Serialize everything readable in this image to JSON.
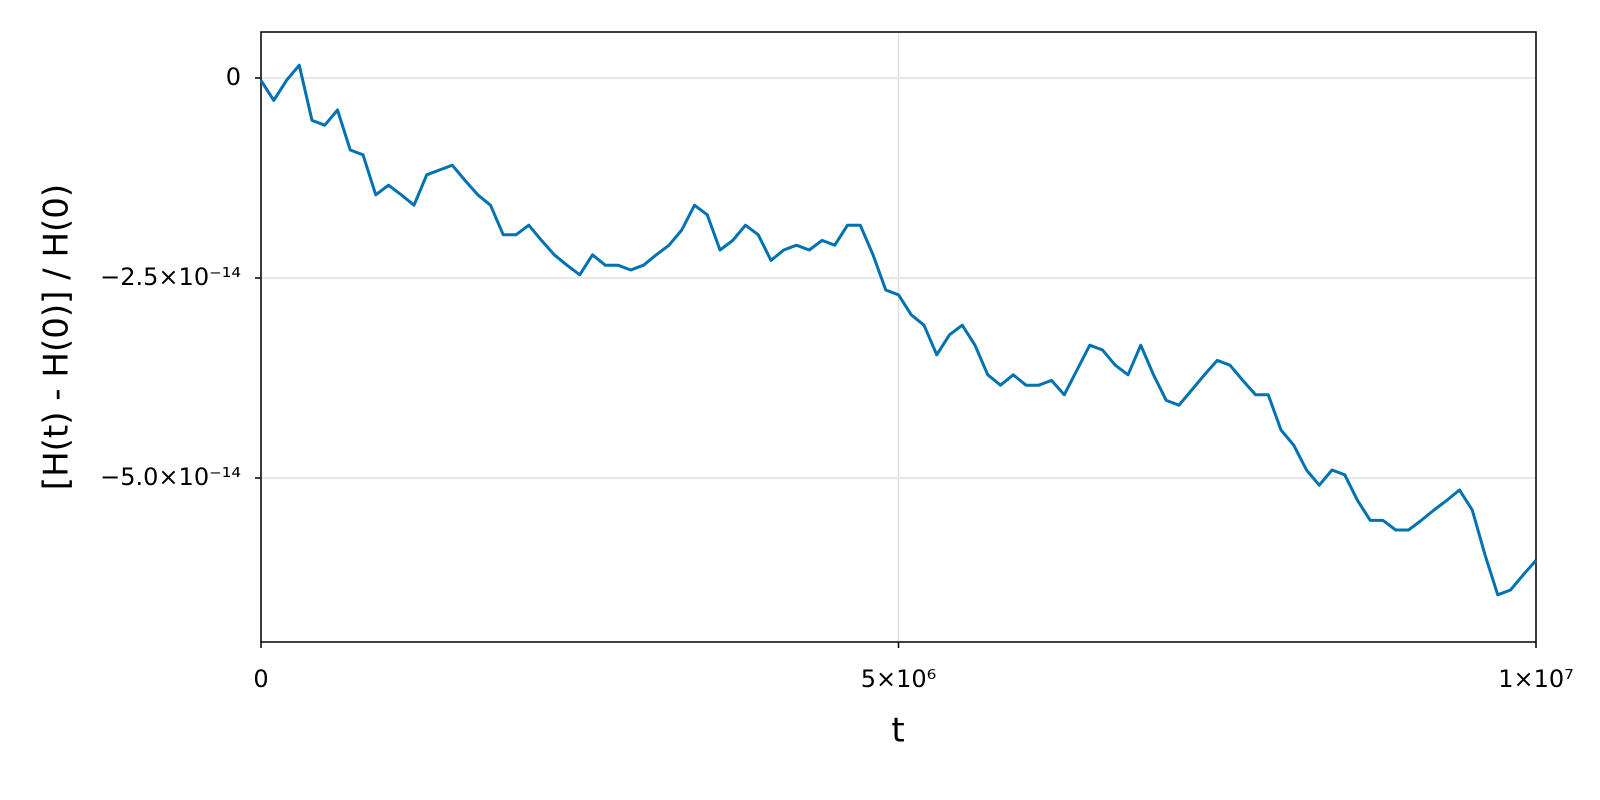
{
  "chart_data": {
    "type": "line",
    "xlabel": "t",
    "ylabel": "[H(t) - H(0)] / H(0)",
    "color": "#0072b2",
    "grid": true,
    "xlim": [
      0,
      10000000
    ],
    "ylim": [
      5.75e-15,
      -7.05e-14
    ],
    "xticks": [
      0,
      {
        "value": 5000000,
        "label": "5×10⁶"
      },
      {
        "value": 10000000,
        "label": "1×10⁷"
      }
    ],
    "yticks": [
      0,
      {
        "value": -2.5e-14,
        "label": "−2.5×10⁻¹⁴"
      },
      {
        "value": -5e-14,
        "label": "−5.0×10⁻¹⁴"
      }
    ],
    "x": [
      0,
      100000,
      200000,
      300000,
      400000,
      500000,
      600000,
      700000,
      800000,
      900000,
      1000000,
      1100000,
      1200000,
      1300000,
      1400000,
      1500000,
      1600000,
      1700000,
      1800000,
      1900000,
      2000000,
      2100000,
      2200000,
      2300000,
      2400000,
      2500000,
      2600000,
      2700000,
      2800000,
      2900000,
      3000000,
      3100000,
      3200000,
      3300000,
      3400000,
      3500000,
      3600000,
      3700000,
      3800000,
      3900000,
      4000000,
      4100000,
      4200000,
      4300000,
      4400000,
      4500000,
      4600000,
      4700000,
      4800000,
      4900000,
      5000000,
      5100000,
      5200000,
      5300000,
      5400000,
      5500000,
      5600000,
      5700000,
      5800000,
      5900000,
      6000000,
      6100000,
      6200000,
      6300000,
      6400000,
      6500000,
      6600000,
      6700000,
      6800000,
      6900000,
      7000000,
      7100000,
      7200000,
      7300000,
      7400000,
      7500000,
      7600000,
      7700000,
      7800000,
      7900000,
      8000000,
      8100000,
      8200000,
      8300000,
      8400000,
      8500000,
      8600000,
      8700000,
      8800000,
      8900000,
      9000000,
      9100000,
      9200000,
      9300000,
      9400000,
      9500000,
      9600000,
      9700000,
      9800000,
      9900000,
      10000000
    ],
    "values": [
      -3e-16,
      -2.8e-15,
      -3e-16,
      1.6e-15,
      -5.3e-15,
      -5.9e-15,
      -4e-15,
      -9e-15,
      -9.6e-15,
      -1.46e-14,
      -1.34e-14,
      -1.46e-14,
      -1.59e-14,
      -1.21e-14,
      -1.15e-14,
      -1.09e-14,
      -1.28e-14,
      -1.46e-14,
      -1.59e-14,
      -1.96e-14,
      -1.96e-14,
      -1.84e-14,
      -2.03e-14,
      -2.21e-14,
      -2.34e-14,
      -2.46e-14,
      -2.21e-14,
      -2.34e-14,
      -2.34e-14,
      -2.4e-14,
      -2.34e-14,
      -2.21e-14,
      -2.09e-14,
      -1.9e-14,
      -1.59e-14,
      -1.71e-14,
      -2.15e-14,
      -2.03e-14,
      -1.84e-14,
      -1.96e-14,
      -2.28e-14,
      -2.15e-14,
      -2.09e-14,
      -2.15e-14,
      -2.03e-14,
      -2.09e-14,
      -1.84e-14,
      -1.84e-14,
      -2.21e-14,
      -2.65e-14,
      -2.71e-14,
      -2.96e-14,
      -3.09e-14,
      -3.46e-14,
      -3.21e-14,
      -3.09e-14,
      -3.34e-14,
      -3.71e-14,
      -3.84e-14,
      -3.71e-14,
      -3.84e-14,
      -3.84e-14,
      -3.78e-14,
      -3.96e-14,
      -3.65e-14,
      -3.34e-14,
      -3.4e-14,
      -3.59e-14,
      -3.71e-14,
      -3.34e-14,
      -3.71e-14,
      -4.03e-14,
      -4.09e-14,
      -3.9e-14,
      -3.71e-14,
      -3.53e-14,
      -3.59e-14,
      -3.78e-14,
      -3.96e-14,
      -3.96e-14,
      -4.4e-14,
      -4.59e-14,
      -4.9e-14,
      -5.09e-14,
      -4.9e-14,
      -4.96e-14,
      -5.28e-14,
      -5.53e-14,
      -5.53e-14,
      -5.65e-14,
      -5.65e-14,
      -5.53e-14,
      -5.4e-14,
      -5.28e-14,
      -5.15e-14,
      -5.4e-14,
      -5.96e-14,
      -6.46e-14,
      -6.4e-14,
      -6.21e-14,
      -6.03e-14
    ]
  }
}
